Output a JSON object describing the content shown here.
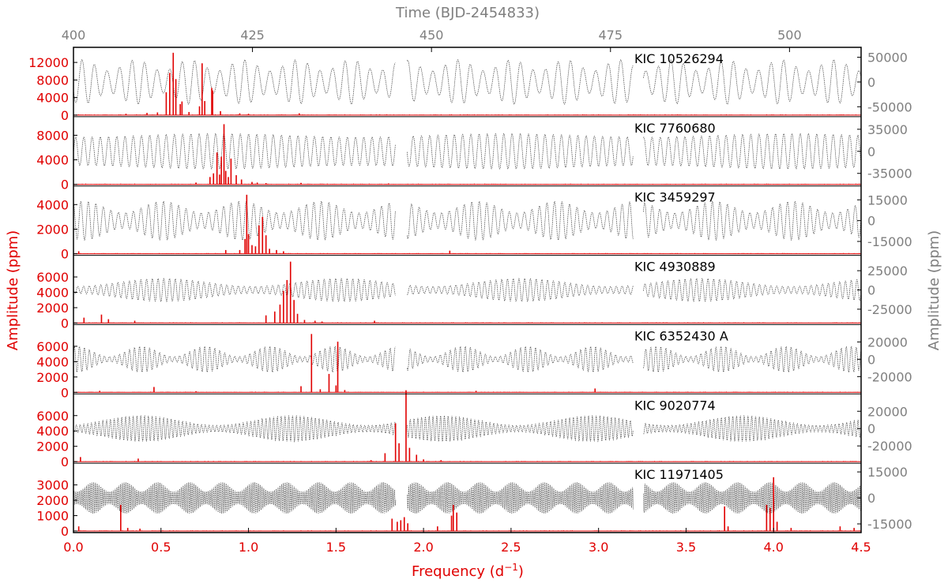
{
  "colors": {
    "spectrum": "#e00000",
    "lightcurve": "#555555",
    "grey_axis": "#7f7f7f",
    "frame": "#000000"
  },
  "chart_data": {
    "type": "line",
    "layout": "stacked-panels",
    "xlabel_bottom": "Frequency (d",
    "xlabel_bottom_sup": "−1",
    "xlabel_bottom_close": ")",
    "xlabel_top": "Time (BJD-2454833)",
    "ylabel_left": "Amplitude (ppm)",
    "ylabel_right": "Amplitude (ppm)",
    "xlim_bottom": [
      0.0,
      4.5
    ],
    "xticks_bottom": [
      "0.0",
      "0.5",
      "1.0",
      "1.5",
      "2.0",
      "2.5",
      "3.0",
      "3.5",
      "4.0",
      "4.5"
    ],
    "xlim_top": [
      400,
      510
    ],
    "xticks_top": [
      "400",
      "425",
      "450",
      "475",
      "500"
    ],
    "data_gaps_time": [
      [
        445,
        446.6
      ],
      [
        478.2,
        479.6
      ]
    ],
    "panels": [
      {
        "star": "KIC 10526294",
        "left_ylim": [
          0,
          14000
        ],
        "left_ticks": [
          "0",
          "4000",
          "8000",
          "12000"
        ],
        "right_ylim": [
          -70000,
          70000
        ],
        "right_ticks": [
          "-50000",
          "0",
          "50000"
        ],
        "peaks": [
          [
            0.53,
            5200
          ],
          [
            0.55,
            9600
          ],
          [
            0.57,
            14200
          ],
          [
            0.585,
            8200
          ],
          [
            0.61,
            2500
          ],
          [
            0.62,
            3100
          ],
          [
            0.66,
            700
          ],
          [
            0.72,
            2000
          ],
          [
            0.735,
            11800
          ],
          [
            0.75,
            3200
          ],
          [
            0.79,
            6200
          ],
          [
            0.795,
            5600
          ],
          [
            0.84,
            900
          ],
          [
            1.29,
            400
          ],
          [
            0.3,
            300
          ],
          [
            0.42,
            500
          ],
          [
            0.48,
            600
          ],
          [
            0.95,
            400
          ],
          [
            1.0,
            300
          ]
        ],
        "lightcurve": {
          "amplitude": 45000,
          "period_days": 1.75,
          "mod_period_days": 7.5,
          "mod_depth": 0.5
        }
      },
      {
        "star": "KIC 7760680",
        "left_ylim": [
          0,
          10000
        ],
        "left_ticks": [
          "0",
          "4000",
          "8000"
        ],
        "right_ylim": [
          -55000,
          55000
        ],
        "right_ticks": [
          "-35000",
          "0",
          "35000"
        ],
        "peaks": [
          [
            0.78,
            1200
          ],
          [
            0.8,
            1800
          ],
          [
            0.82,
            5200
          ],
          [
            0.835,
            1600
          ],
          [
            0.845,
            4500
          ],
          [
            0.86,
            9800
          ],
          [
            0.87,
            2200
          ],
          [
            0.885,
            1200
          ],
          [
            0.9,
            4200
          ],
          [
            0.93,
            1500
          ],
          [
            0.96,
            800
          ],
          [
            1.02,
            400
          ],
          [
            1.05,
            300
          ],
          [
            1.1,
            200
          ],
          [
            1.3,
            250
          ],
          [
            1.8,
            150
          ],
          [
            0.7,
            300
          ]
        ],
        "lightcurve": {
          "amplitude": 28000,
          "period_days": 1.15,
          "mod_period_days": 40,
          "mod_depth": 0.2
        }
      },
      {
        "star": "KIC 3459297",
        "left_ylim": [
          0,
          5000
        ],
        "left_ticks": [
          "0",
          "2000",
          "4000"
        ],
        "right_ylim": [
          -25000,
          25000
        ],
        "right_ticks": [
          "-15000",
          "0",
          "15000"
        ],
        "peaks": [
          [
            0.87,
            300
          ],
          [
            0.98,
            1200
          ],
          [
            0.99,
            4800
          ],
          [
            1.0,
            1600
          ],
          [
            1.02,
            700
          ],
          [
            1.04,
            600
          ],
          [
            1.06,
            2300
          ],
          [
            1.08,
            3000
          ],
          [
            1.1,
            1500
          ],
          [
            1.12,
            400
          ],
          [
            1.16,
            300
          ],
          [
            1.2,
            200
          ],
          [
            2.15,
            250
          ],
          [
            0.95,
            300
          ],
          [
            0.03,
            200
          ]
        ],
        "lightcurve": {
          "amplitude": 14000,
          "period_days": 1.05,
          "mod_period_days": 11,
          "mod_depth": 0.6
        }
      },
      {
        "star": "KIC 4930889",
        "left_ylim": [
          0,
          8000
        ],
        "left_ticks": [
          "0",
          "2000",
          "4000",
          "6000"
        ],
        "right_ylim": [
          -45000,
          45000
        ],
        "right_ticks": [
          "-25000",
          "0",
          "25000"
        ],
        "peaks": [
          [
            0.06,
            700
          ],
          [
            0.16,
            1100
          ],
          [
            0.2,
            500
          ],
          [
            0.35,
            300
          ],
          [
            1.1,
            1000
          ],
          [
            1.15,
            1500
          ],
          [
            1.18,
            2400
          ],
          [
            1.2,
            4200
          ],
          [
            1.22,
            5600
          ],
          [
            1.24,
            8000
          ],
          [
            1.26,
            3000
          ],
          [
            1.28,
            1200
          ],
          [
            1.32,
            400
          ],
          [
            1.38,
            300
          ],
          [
            1.42,
            200
          ],
          [
            1.72,
            300
          ]
        ],
        "lightcurve": {
          "amplitude": 15000,
          "period_days": 0.8,
          "mod_period_days": 25,
          "mod_depth": 0.7
        }
      },
      {
        "star": "KIC 6352430 A",
        "left_ylim": [
          0,
          8000
        ],
        "left_ticks": [
          "0",
          "2000",
          "4000",
          "6000"
        ],
        "right_ylim": [
          -40000,
          40000
        ],
        "right_ticks": [
          "-20000",
          "0",
          "20000"
        ],
        "peaks": [
          [
            0.46,
            700
          ],
          [
            1.3,
            800
          ],
          [
            1.36,
            7600
          ],
          [
            1.41,
            400
          ],
          [
            1.46,
            2400
          ],
          [
            1.5,
            900
          ],
          [
            1.51,
            6600
          ],
          [
            1.55,
            300
          ],
          [
            2.98,
            500
          ],
          [
            0.15,
            200
          ],
          [
            0.7,
            150
          ],
          [
            2.3,
            200
          ]
        ],
        "lightcurve": {
          "amplitude": 15000,
          "period_days": 0.7,
          "mod_period_days": 9,
          "mod_depth": 0.8
        }
      },
      {
        "star": "KIC 9020774",
        "left_ylim": [
          0,
          8000
        ],
        "left_ticks": [
          "0",
          "2000",
          "4000",
          "6000"
        ],
        "right_ylim": [
          -40000,
          40000
        ],
        "right_ticks": [
          "-20000",
          "0",
          "20000"
        ],
        "peaks": [
          [
            0.04,
            600
          ],
          [
            0.37,
            400
          ],
          [
            1.78,
            1100
          ],
          [
            1.84,
            5000
          ],
          [
            1.86,
            2400
          ],
          [
            1.9,
            9300
          ],
          [
            1.92,
            1800
          ],
          [
            1.96,
            900
          ],
          [
            2.0,
            300
          ],
          [
            1.7,
            200
          ],
          [
            2.1,
            200
          ]
        ],
        "lightcurve": {
          "amplitude": 15000,
          "period_days": 0.53,
          "mod_period_days": 21,
          "mod_depth": 0.75
        }
      },
      {
        "star": "KIC 11971405",
        "left_ylim": [
          0,
          4000
        ],
        "left_ticks": [
          "0",
          "1000",
          "2000",
          "3000"
        ],
        "right_ylim": [
          -20000,
          20000
        ],
        "right_ticks": [
          "-15000",
          "0",
          "15000"
        ],
        "peaks": [
          [
            0.03,
            300
          ],
          [
            0.27,
            1700
          ],
          [
            0.31,
            200
          ],
          [
            0.38,
            150
          ],
          [
            1.82,
            800
          ],
          [
            1.85,
            600
          ],
          [
            1.87,
            700
          ],
          [
            1.89,
            900
          ],
          [
            1.91,
            500
          ],
          [
            2.08,
            300
          ],
          [
            2.16,
            1000
          ],
          [
            2.17,
            1700
          ],
          [
            2.19,
            1200
          ],
          [
            3.72,
            1600
          ],
          [
            3.74,
            300
          ],
          [
            3.96,
            1700
          ],
          [
            3.98,
            1500
          ],
          [
            4.0,
            3500
          ],
          [
            4.02,
            600
          ],
          [
            4.1,
            200
          ],
          [
            4.38,
            300
          ],
          [
            4.46,
            200
          ]
        ],
        "lightcurve": {
          "amplitude": 9000,
          "period_days": 0.25,
          "mod_period_days": 4.5,
          "mod_depth": 0.6
        }
      }
    ]
  }
}
